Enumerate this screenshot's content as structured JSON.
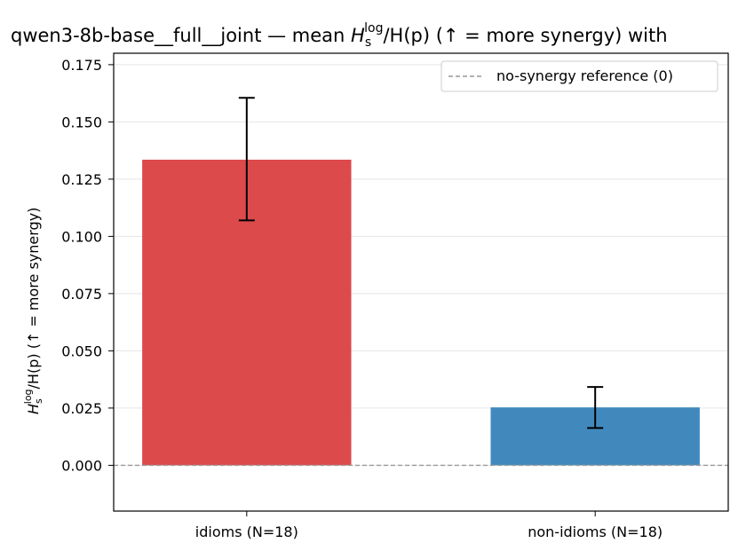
{
  "chart_data": {
    "type": "bar",
    "title": {
      "prefix": "qwen3-8b-base__full__joint — mean ",
      "h": "H",
      "sub": "s",
      "sup": "log",
      "suffix": "/H(p)  (↑ = more synergy) with"
    },
    "ylabel": {
      "h": "H",
      "sub": "s",
      "sup": "log",
      "suffix": "/H(p)  (↑ = more synergy)"
    },
    "categories": [
      "idioms (N=18)",
      "non-idioms (N=18)"
    ],
    "values": [
      0.1335,
      0.0253
    ],
    "errors": [
      {
        "low": 0.107,
        "high": 0.1605
      },
      {
        "low": 0.0163,
        "high": 0.0342
      }
    ],
    "colors": [
      "#dd4a4c",
      "#4189bd"
    ],
    "ylim": [
      -0.02,
      0.18
    ],
    "yticks": [
      "0.000",
      "0.025",
      "0.050",
      "0.075",
      "0.100",
      "0.125",
      "0.150",
      "0.175"
    ],
    "reference_line": {
      "y": 0,
      "label": "no-synergy reference (0)",
      "style": "dashed",
      "color": "#999999"
    },
    "grid": "horizontal",
    "legend": {
      "position": "top-right"
    }
  }
}
